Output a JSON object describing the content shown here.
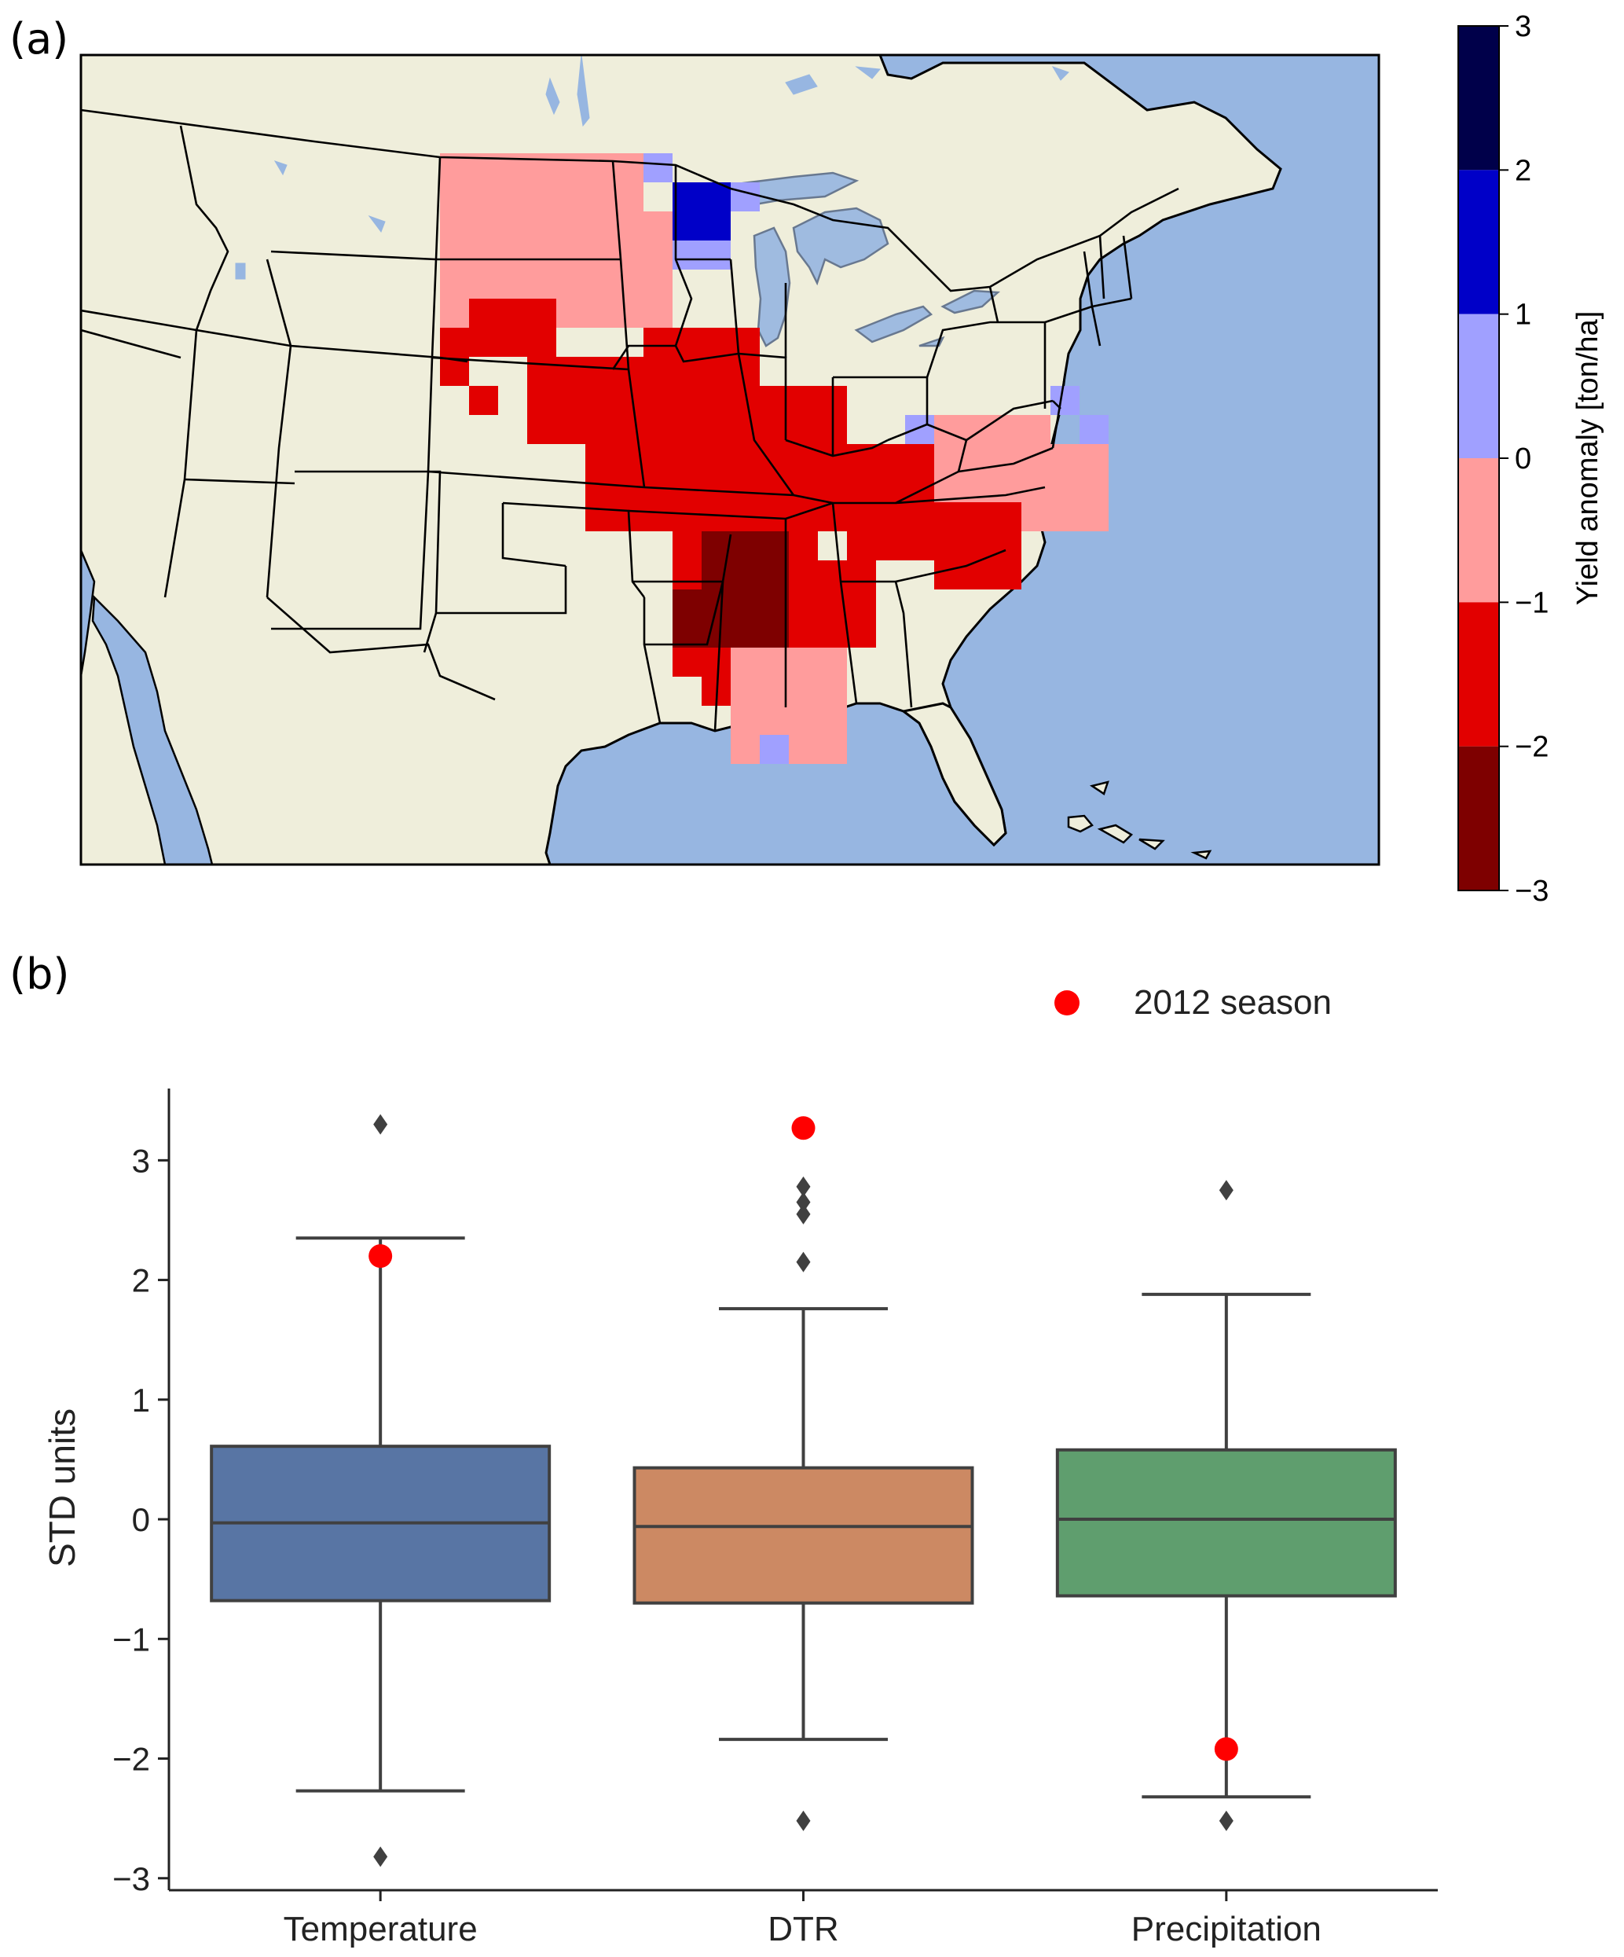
{
  "figure": {
    "panel_a_label": "(a)",
    "panel_b_label": "(b)"
  },
  "map": {
    "colorbar": {
      "label": "Yield anomaly [ton/ha]",
      "ticks": [
        "3",
        "2",
        "1",
        "0",
        "−1",
        "−2",
        "−3"
      ],
      "bins": [
        {
          "from": 2,
          "to": 3,
          "color": "#00004a"
        },
        {
          "from": 1,
          "to": 2,
          "color": "#0000c8"
        },
        {
          "from": 0,
          "to": 1,
          "color": "#a0a0ff"
        },
        {
          "from": -1,
          "to": 0,
          "color": "#ff9c9c"
        },
        {
          "from": -2,
          "to": -1,
          "color": "#e20000"
        },
        {
          "from": -3,
          "to": -2,
          "color": "#7e0000"
        }
      ]
    },
    "colors": {
      "land": "#efeedb",
      "ocean": "#97b6e1",
      "lakes": "#97b6e1",
      "borders": "#000000"
    }
  },
  "chart_data": {
    "type": "box",
    "ylabel": "STD units",
    "ylim": [
      -3.1,
      3.6
    ],
    "yticks": [
      "−3",
      "−2",
      "−1",
      "0",
      "1",
      "2",
      "3"
    ],
    "ytick_values": [
      -3,
      -2,
      -1,
      0,
      1,
      2,
      3
    ],
    "categories": [
      "Temperature",
      "DTR",
      "Precipitation"
    ],
    "legend": {
      "label": "2012 season",
      "position": "top-right"
    },
    "colors": {
      "Temperature": "#5875a4",
      "DTR": "#cc8963",
      "Precipitation": "#5f9e6e",
      "season_2012": "#ff0000",
      "lines": "#404040"
    },
    "boxes": [
      {
        "name": "Temperature",
        "whislo": -2.27,
        "q1": -0.68,
        "median": -0.03,
        "q3": 0.61,
        "whishi": 2.35,
        "fliers": [
          3.3,
          -2.82
        ],
        "season_2012": 2.2
      },
      {
        "name": "DTR",
        "whislo": -1.84,
        "q1": -0.7,
        "median": -0.06,
        "q3": 0.43,
        "whishi": 1.76,
        "fliers": [
          2.15,
          2.55,
          2.65,
          2.78,
          -2.52
        ],
        "season_2012": 3.27
      },
      {
        "name": "Precipitation",
        "whislo": -2.32,
        "q1": -0.64,
        "median": 0.0,
        "q3": 0.58,
        "whishi": 1.88,
        "fliers": [
          2.75,
          -2.52
        ],
        "season_2012": -1.92
      }
    ]
  }
}
